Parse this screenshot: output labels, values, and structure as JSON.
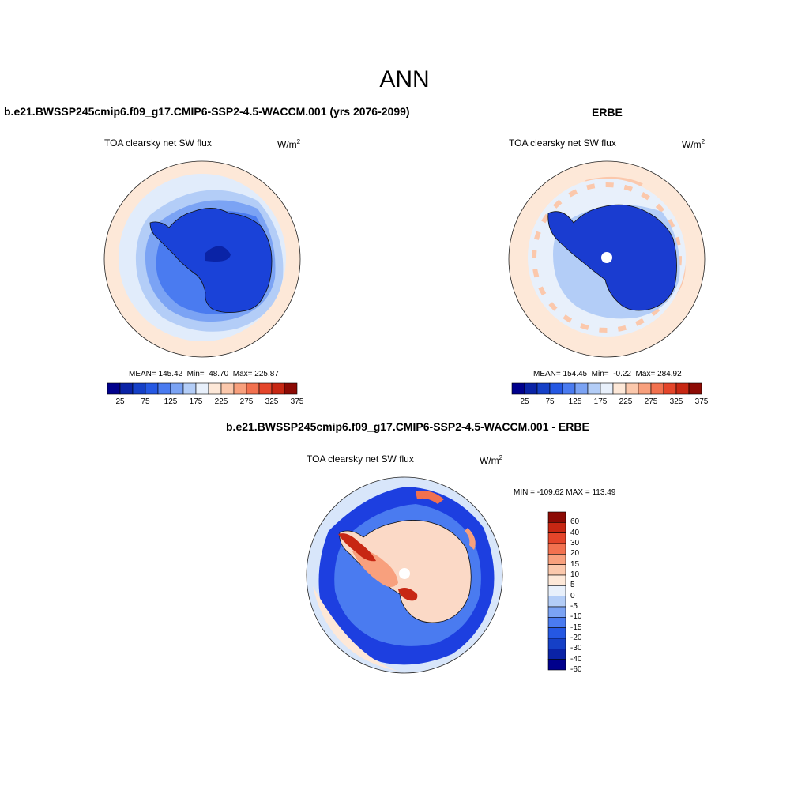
{
  "title": "ANN",
  "panels": [
    {
      "title": "b.e21.BWSSP245cmip6.f09_g17.CMIP6-SSP2-4.5-WACCM.001 (yrs 2076-2099)",
      "variable": "TOA clearsky net SW flux",
      "units_base": "W/m",
      "units_exp": "2",
      "mean_label": "MEAN=",
      "mean": "145.42",
      "min_label": "Min=",
      "min": "48.70",
      "max_label": "Max=",
      "max": "225.87"
    },
    {
      "title": "ERBE",
      "variable": "TOA clearsky net SW flux",
      "units_base": "W/m",
      "units_exp": "2",
      "mean_label": "MEAN=",
      "mean": "154.45",
      "min_label": "Min=",
      "min": "-0.22",
      "max_label": "Max=",
      "max": "284.92"
    },
    {
      "title": "b.e21.BWSSP245cmip6.f09_g17.CMIP6-SSP2-4.5-WACCM.001 - ERBE",
      "variable": "TOA clearsky net SW flux",
      "units_base": "W/m",
      "units_exp": "2",
      "minmax": "MIN = -109.62 MAX = 113.49"
    }
  ],
  "colorbar_abs": {
    "colors": [
      "#00008c",
      "#0a23a6",
      "#1540c7",
      "#2558e3",
      "#4a7bf0",
      "#7ba3f4",
      "#b3cdf7",
      "#e8f0fb",
      "#fde8d8",
      "#fbc8ac",
      "#f8a07d",
      "#f2714f",
      "#e4452a",
      "#c72713",
      "#8c0a04"
    ],
    "tick_labels": [
      "25",
      "75",
      "125",
      "175",
      "225",
      "275",
      "325",
      "375"
    ]
  },
  "colorbar_diff": {
    "colors": [
      "#8c0a04",
      "#c72713",
      "#e4452a",
      "#f2714f",
      "#f8a07d",
      "#fbc8ac",
      "#fde8d8",
      "#e8f0fb",
      "#b3cdf7",
      "#7ba3f4",
      "#4a7bf0",
      "#2558e3",
      "#1540c7",
      "#0a23a6",
      "#00008c"
    ],
    "tick_labels": [
      "60",
      "40",
      "30",
      "20",
      "15",
      "10",
      "5",
      "0",
      "-5",
      "-10",
      "-15",
      "-20",
      "-30",
      "-40",
      "-60"
    ]
  }
}
